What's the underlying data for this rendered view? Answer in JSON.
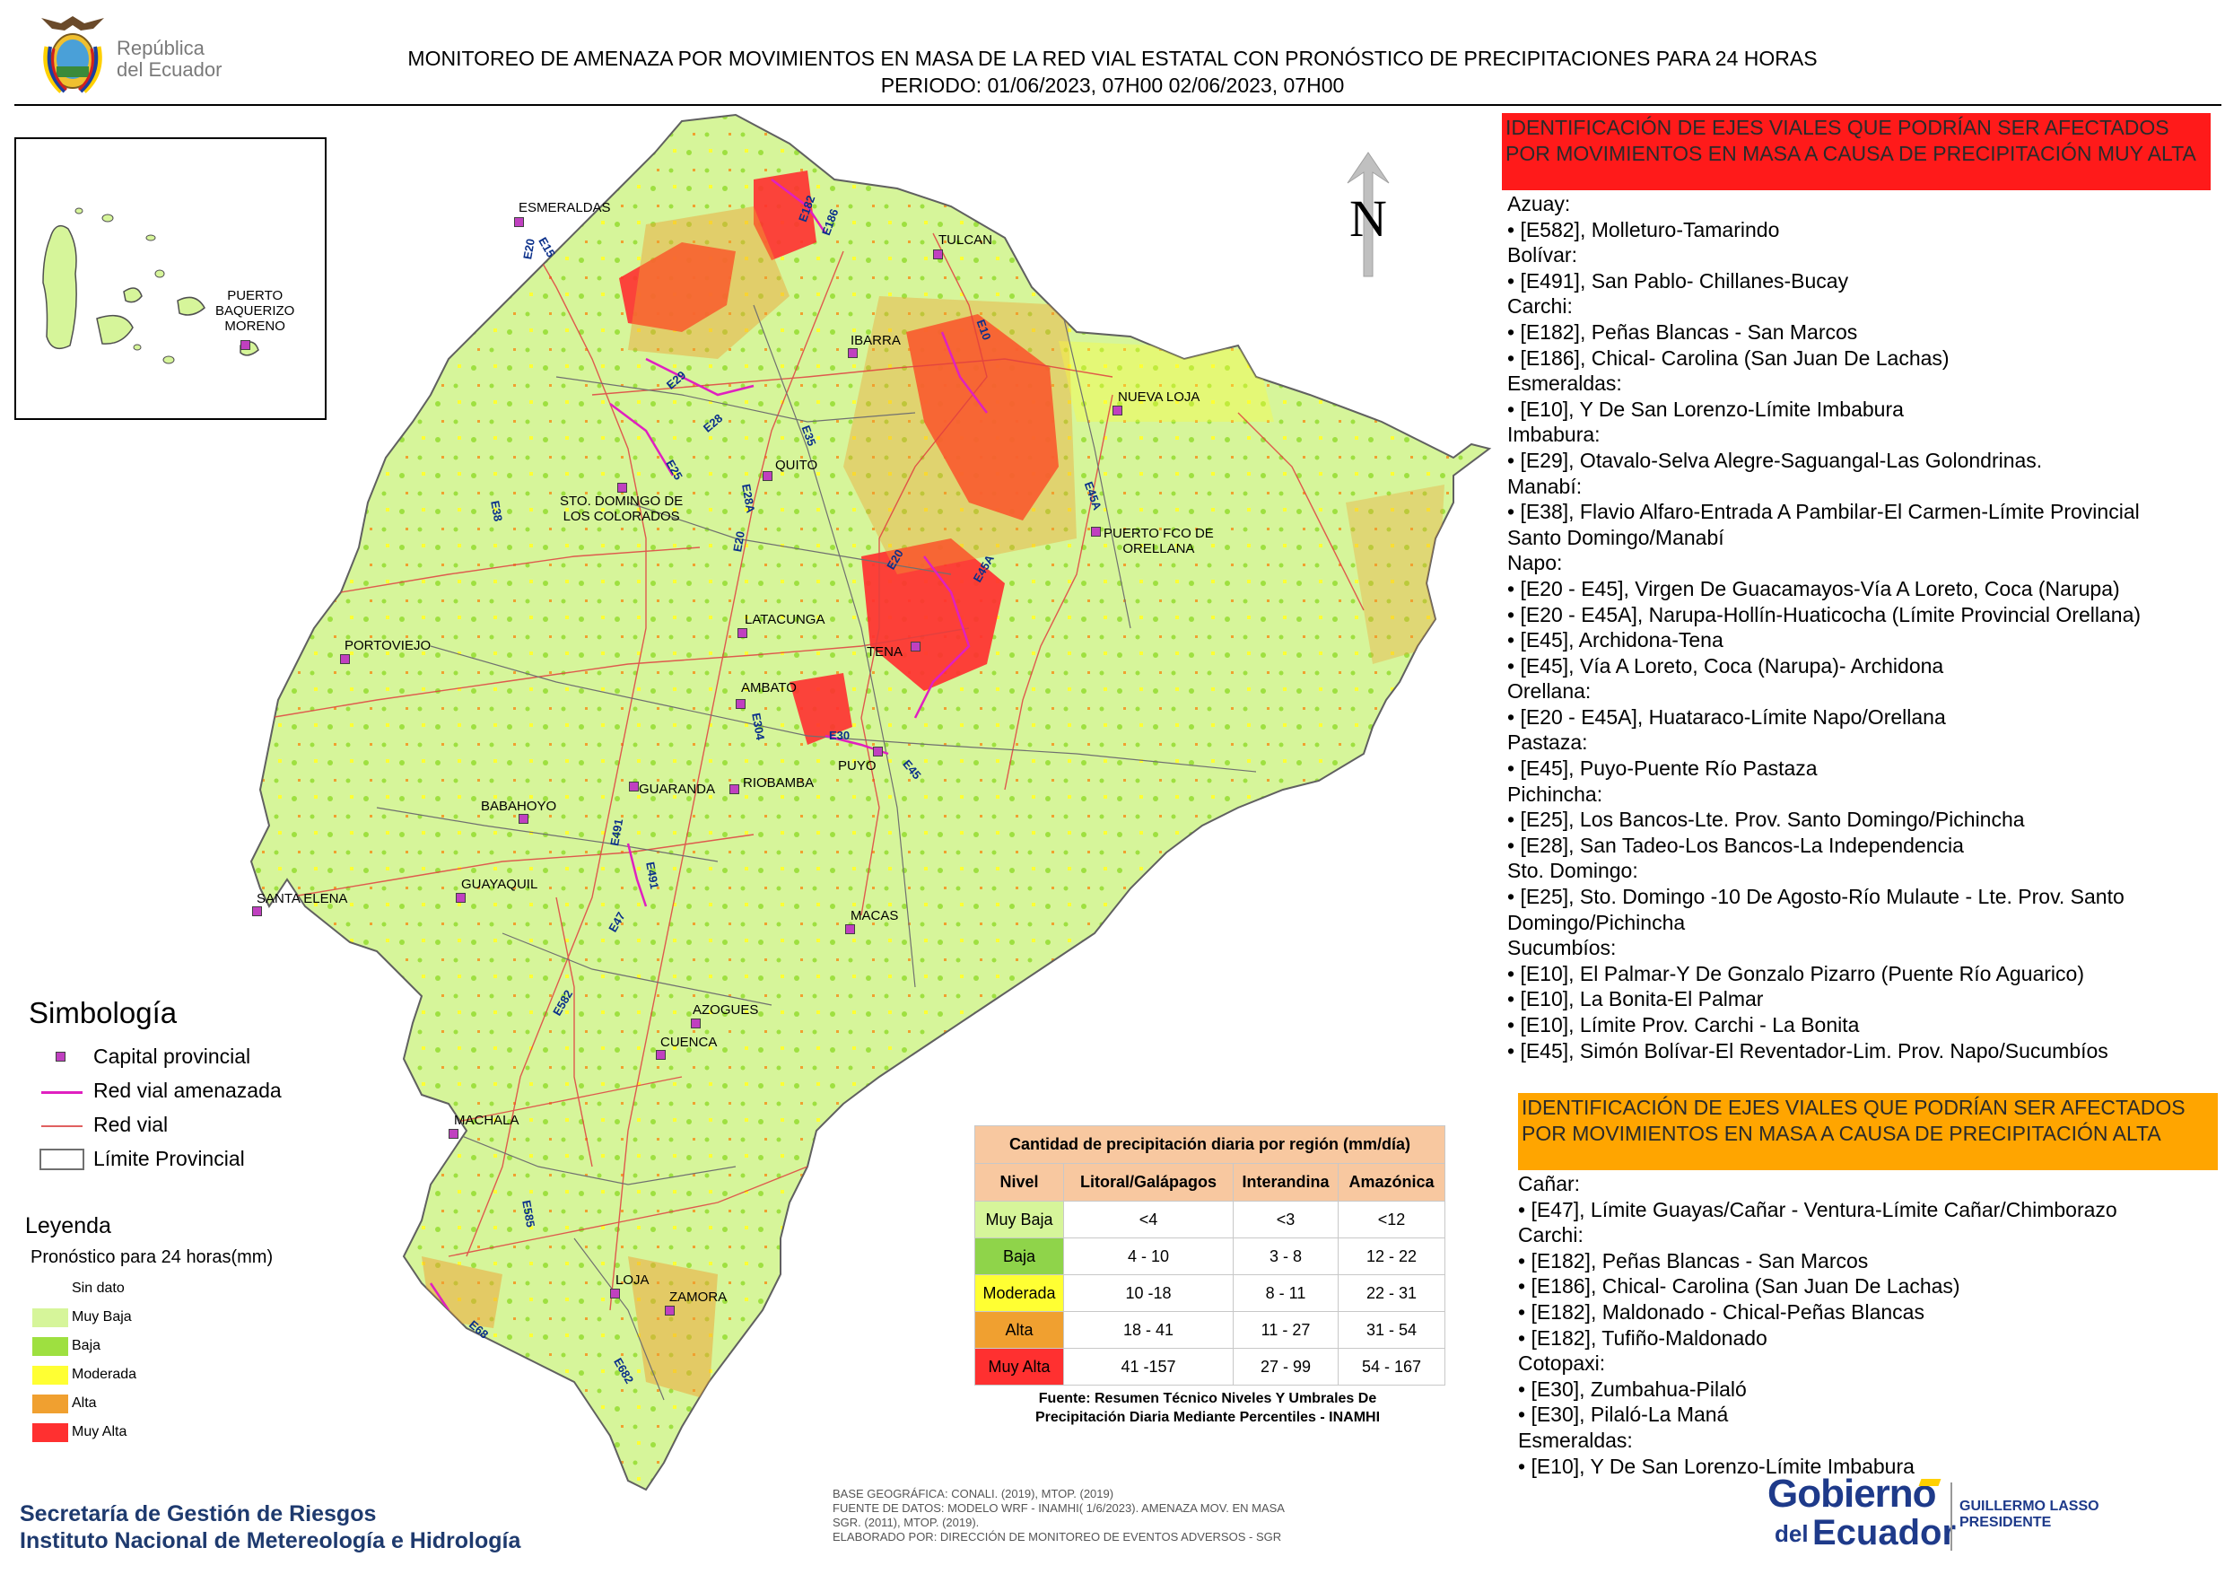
{
  "header": {
    "logo_text_line1": "República",
    "logo_text_line2": "del Ecuador",
    "title_line1": "MONITOREO DE AMENAZA POR MOVIMIENTOS EN MASA DE LA RED VIAL  ESTATAL  CON PRONÓSTICO  DE  PRECIPITACIONES PARA 24 HORAS",
    "title_line2": "PERIODO: 01/06/2023, 07H00 02/06/2023, 07H00"
  },
  "inset": {
    "city": "PUERTO BAQUERIZO MORENO",
    "city_line1": "PUERTO",
    "city_line2": "BAQUERIZO",
    "city_line3": "MORENO"
  },
  "north_label": "N",
  "map": {
    "cities": [
      "ESMERALDAS",
      "TULCAN",
      "IBARRA",
      "NUEVA LOJA",
      "QUITO",
      "STO. DOMINGO DE LOS COLORADOS",
      "PUERTO FCO DE ORELLANA",
      "LATACUNGA",
      "PORTOVIEJO",
      "TENA",
      "AMBATO",
      "PUYO",
      "GUARANDA",
      "RIOBAMBA",
      "BABAHOYO",
      "SANTA ELENA",
      "GUAYAQUIL",
      "MACAS",
      "AZOGUES",
      "CUENCA",
      "MACHALA",
      "LOJA",
      "ZAMORA"
    ],
    "city_labels": {
      "esmeraldas": "ESMERALDAS",
      "tulcan": "TULCAN",
      "ibarra": "IBARRA",
      "nueva_loja": "NUEVA LOJA",
      "quito": "QUITO",
      "sto_domingo_1": "STO. DOMINGO DE",
      "sto_domingo_2": "LOS COLORADOS",
      "orellana_1": "PUERTO FCO DE",
      "orellana_2": "ORELLANA",
      "latacunga": "LATACUNGA",
      "portoviejo": "PORTOVIEJO",
      "tena": "TENA",
      "ambato": "AMBATO",
      "puyo": "PUYO",
      "guaranda": "GUARANDA",
      "riobamba": "RIOBAMBA",
      "babahoyo": "BABAHOYO",
      "santa_elena": "SANTA ELENA",
      "guayaquil": "GUAYAQUIL",
      "macas": "MACAS",
      "azogues": "AZOGUES",
      "cuenca": "CUENCA",
      "machala": "MACHALA",
      "loja": "LOJA",
      "zamora": "ZAMORA"
    },
    "road_labels": {
      "e15": "E15",
      "e20a": "E20",
      "e182": "E182",
      "e186": "E186",
      "e10": "E10",
      "e29": "E29",
      "e28": "E28",
      "e35": "E35",
      "e25": "E25",
      "e38": "E38",
      "e28a": "E28A",
      "e20b": "E20",
      "e45a": "E45A",
      "e20c": "E20",
      "e45a2": "E45A",
      "e45": "E45",
      "e30": "E30",
      "e304": "E304",
      "e45b": "E45",
      "e491": "E491",
      "e491b": "E491",
      "e47": "E47",
      "e582": "E582",
      "e585": "E585",
      "e68": "E68",
      "e682": "E682"
    }
  },
  "symbology": {
    "title": "Simbología",
    "items": [
      "Capital provincial",
      "Red vial amenazada",
      "Red vial",
      "Límite Provincial"
    ]
  },
  "legend": {
    "title": "Leyenda",
    "subtitle": "Pronóstico para 24 horas(mm)",
    "items": [
      {
        "label": "Sin dato",
        "color": "#ffffff"
      },
      {
        "label": "Muy Baja",
        "color": "#d6f59a"
      },
      {
        "label": "Baja",
        "color": "#9ee040"
      },
      {
        "label": "Moderada",
        "color": "#ffff33"
      },
      {
        "label": "Alta",
        "color": "#f0a030"
      },
      {
        "label": "Muy Alta",
        "color": "#ff3030"
      }
    ]
  },
  "precip_table": {
    "title": "Cantidad de precipitación diaria por región (mm/día)",
    "headers": [
      "Nivel",
      "Litoral/Galápagos",
      "Interandina",
      "Amazónica"
    ],
    "rows": [
      {
        "nivel": "Muy Baja",
        "litoral": "<4",
        "interandina": "<3",
        "amazonica": "<12",
        "color": "#d6f59a"
      },
      {
        "nivel": "Baja",
        "litoral": "4 - 10",
        "interandina": "3 - 8",
        "amazonica": "12 - 22",
        "color": "#8fd44a"
      },
      {
        "nivel": "Moderada",
        "litoral": "10 -18",
        "interandina": "8 - 11",
        "amazonica": "22 - 31",
        "color": "#ffff33"
      },
      {
        "nivel": "Alta",
        "litoral": "18 - 41",
        "interandina": "11 - 27",
        "amazonica": "31 - 54",
        "color": "#f0a030"
      },
      {
        "nivel": "Muy Alta",
        "litoral": "41 -157",
        "interandina": "27 - 99",
        "amazonica": "54 - 167",
        "color": "#ff3030"
      }
    ],
    "source_line1": "Fuente: Resumen Técnico Niveles Y Umbrales De",
    "source_line2": "Precipitación Diaria Mediante Percentiles - INAMHI"
  },
  "panel_muy_alta": {
    "heading": "IDENTIFICACIÓN DE EJES VIALES QUE PODRÍAN SER AFECTADOS POR MOVIMIENTOS EN MASA A CAUSA DE PRECIPITACIÓN MUY ALTA",
    "lines": [
      "Azuay:",
      "• [E582], Molleturo-Tamarindo",
      "Bolívar:",
      "• [E491], San Pablo- Chillanes-Bucay",
      "Carchi:",
      "• [E182], Peñas Blancas - San Marcos",
      "• [E186], Chical- Carolina (San Juan De Lachas)",
      "Esmeraldas:",
      "• [E10], Y De San Lorenzo-Límite Imbabura",
      "Imbabura:",
      "• [E29], Otavalo-Selva Alegre-Saguangal-Las Golondrinas.",
      "Manabí:",
      "• [E38], Flavio Alfaro-Entrada A Pambilar-El Carmen-Límite Provincial",
      "Santo Domingo/Manabí",
      "Napo:",
      "• [E20 - E45], Virgen De Guacamayos-Vía A Loreto, Coca (Narupa)",
      "• [E20 - E45A], Narupa-Hollín-Huaticocha (Límite Provincial Orellana)",
      "• [E45], Archidona-Tena",
      "• [E45], Vía A Loreto, Coca (Narupa)- Archidona",
      "Orellana:",
      "• [E20 - E45A], Huataraco-Límite Napo/Orellana",
      "Pastaza:",
      "• [E45], Puyo-Puente Río Pastaza",
      "Pichincha:",
      "• [E25], Los Bancos-Lte. Prov. Santo Domingo/Pichincha",
      "• [E28], San Tadeo-Los Bancos-La Independencia",
      "Sto. Domingo:",
      "• [E25], Sto. Domingo -10 De Agosto-Río Mulaute - Lte. Prov. Santo",
      "Domingo/Pichincha",
      "Sucumbíos:",
      "• [E10], El Palmar-Y De Gonzalo Pizarro (Puente Río Aguarico)",
      "• [E10], La Bonita-El Palmar",
      "• [E10], Límite Prov. Carchi - La Bonita",
      "• [E45], Simón Bolívar-El Reventador-Lim. Prov. Napo/Sucumbíos"
    ]
  },
  "panel_alta": {
    "heading": "IDENTIFICACIÓN DE EJES VIALES QUE PODRÍAN SER AFECTADOS POR MOVIMIENTOS EN MASA A CAUSA DE PRECIPITACIÓN  ALTA",
    "lines": [
      "Cañar:",
      "• [E47], Límite Guayas/Cañar - Ventura-Límite Cañar/Chimborazo",
      "Carchi:",
      "• [E182], Peñas Blancas - San Marcos",
      "• [E186], Chical- Carolina (San Juan De Lachas)",
      "• [E182], Maldonado - Chical-Peñas Blancas",
      "• [E182], Tufiño-Maldonado",
      "Cotopaxi:",
      "• [E30], Zumbahua-Pilaló",
      "• [E30], Pilaló-La Maná",
      "Esmeraldas:",
      "• [E10], Y De San Lorenzo-Límite Imbabura"
    ]
  },
  "footer": {
    "org_line1": "Secretaría de Gestión de Riesgos",
    "org_line2": "Instituto Nacional de Metereología e Hidrología",
    "credits_line1": "BASE GEOGRÁFICA: CONALI. (2019), MTOP. (2019)",
    "credits_line2": "FUENTE DE DATOS: MODELO WRF - INAMHI( 1/6/2023).  AMENAZA MOV. EN MASA",
    "credits_line3": "SGR. (2011), MTOP. (2019).",
    "credits_line4": "ELABORADO POR: DIRECCIÓN DE MONITOREO DE EVENTOS ADVERSOS - SGR",
    "gobierno_1": "Gobierno",
    "gobierno_2": "del",
    "gobierno_3": "Ecuador",
    "president_name": "GUILLERMO LASSO",
    "president_title": "PRESIDENTE"
  },
  "colors": {
    "muy_alta_heading": "#ff1a1a",
    "alta_heading": "#ffa500",
    "threatened_road": "#e020c0",
    "road": "#e04040",
    "province_border": "#707070"
  }
}
